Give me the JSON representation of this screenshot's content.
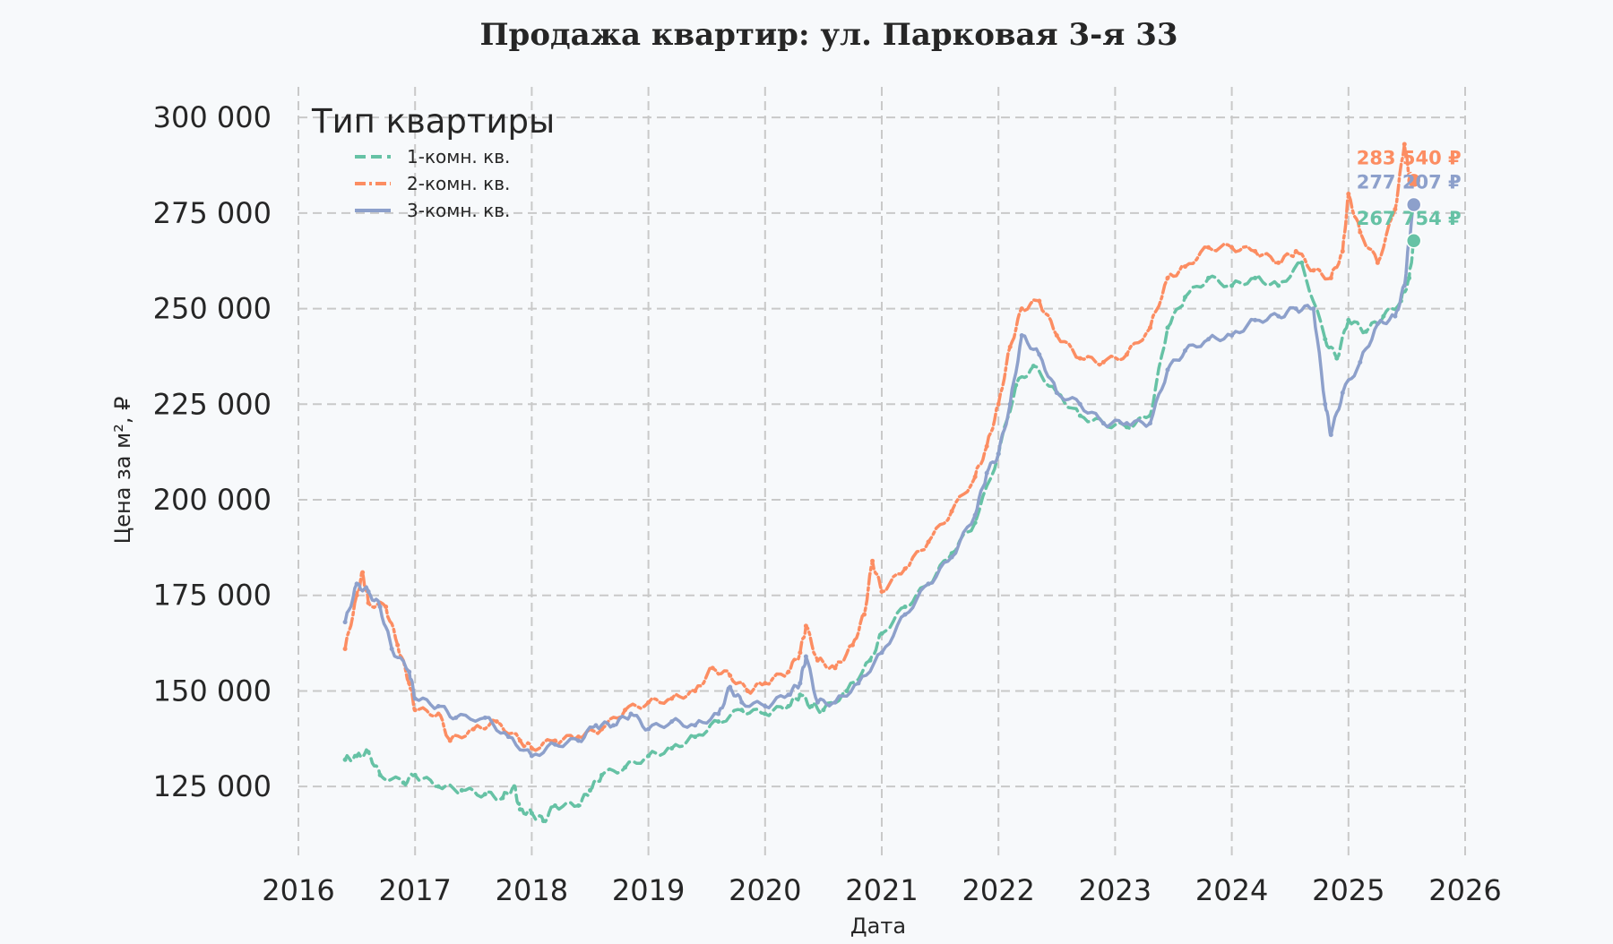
{
  "chart_data": {
    "type": "line",
    "title": "Продажа квартир: ул. Парковая 3-я 33",
    "xlabel": "Дата",
    "ylabel": "Цена за м², ₽",
    "xlim": [
      2016,
      2026
    ],
    "ylim": [
      107000,
      308000
    ],
    "xticks": [
      2016,
      2017,
      2018,
      2019,
      2020,
      2021,
      2022,
      2023,
      2024,
      2025,
      2026
    ],
    "xtick_labels": [
      "2016",
      "2017",
      "2018",
      "2019",
      "2020",
      "2021",
      "2022",
      "2023",
      "2024",
      "2025",
      "2026"
    ],
    "yticks": [
      125000,
      150000,
      175000,
      200000,
      225000,
      250000,
      275000,
      300000
    ],
    "ytick_labels": [
      "125 000",
      "150 000",
      "175 000",
      "200 000",
      "225 000",
      "250 000",
      "275 000",
      "300 000"
    ],
    "grid": true,
    "legend": {
      "title": "Тип квартиры",
      "position": "top-left"
    },
    "series": [
      {
        "name": "1-комн. кв.",
        "color": "#66c2a5",
        "style": "dashed",
        "end_label": "267 754 ₽",
        "end_value": 267754,
        "points": [
          [
            2016.4,
            132000
          ],
          [
            2016.5,
            133000
          ],
          [
            2016.6,
            134000
          ],
          [
            2016.7,
            128000
          ],
          [
            2016.9,
            126000
          ],
          [
            2017.0,
            128000
          ],
          [
            2017.2,
            125000
          ],
          [
            2017.4,
            124000
          ],
          [
            2017.6,
            123000
          ],
          [
            2017.75,
            122000
          ],
          [
            2017.85,
            125000
          ],
          [
            2017.9,
            119000
          ],
          [
            2018.0,
            118000
          ],
          [
            2018.1,
            116000
          ],
          [
            2018.2,
            120000
          ],
          [
            2018.4,
            120000
          ],
          [
            2018.5,
            124000
          ],
          [
            2018.6,
            128000
          ],
          [
            2018.8,
            130000
          ],
          [
            2019.0,
            133000
          ],
          [
            2019.2,
            135000
          ],
          [
            2019.4,
            138000
          ],
          [
            2019.6,
            142000
          ],
          [
            2019.8,
            145000
          ],
          [
            2020.0,
            144000
          ],
          [
            2020.2,
            146000
          ],
          [
            2020.3,
            149000
          ],
          [
            2020.4,
            146000
          ],
          [
            2020.5,
            145000
          ],
          [
            2020.7,
            150000
          ],
          [
            2020.9,
            158000
          ],
          [
            2021.0,
            165000
          ],
          [
            2021.2,
            172000
          ],
          [
            2021.4,
            178000
          ],
          [
            2021.6,
            186000
          ],
          [
            2021.8,
            194000
          ],
          [
            2022.0,
            212000
          ],
          [
            2022.15,
            230000
          ],
          [
            2022.3,
            235000
          ],
          [
            2022.5,
            228000
          ],
          [
            2022.7,
            222000
          ],
          [
            2022.9,
            220000
          ],
          [
            2023.1,
            219000
          ],
          [
            2023.3,
            222000
          ],
          [
            2023.45,
            245000
          ],
          [
            2023.6,
            253000
          ],
          [
            2023.8,
            258000
          ],
          [
            2024.0,
            256000
          ],
          [
            2024.2,
            258000
          ],
          [
            2024.4,
            256000
          ],
          [
            2024.6,
            262000
          ],
          [
            2024.8,
            242000
          ],
          [
            2024.9,
            237000
          ],
          [
            2025.0,
            247000
          ],
          [
            2025.15,
            244000
          ],
          [
            2025.3,
            248000
          ],
          [
            2025.45,
            252000
          ],
          [
            2025.52,
            258000
          ],
          [
            2025.56,
            267754
          ]
        ]
      },
      {
        "name": "2-комн. кв.",
        "color": "#fc8d62",
        "style": "dashdot",
        "end_label": "283 540 ₽",
        "end_value": 283540,
        "points": [
          [
            2016.4,
            161000
          ],
          [
            2016.5,
            175000
          ],
          [
            2016.55,
            181000
          ],
          [
            2016.6,
            173000
          ],
          [
            2016.75,
            172000
          ],
          [
            2016.85,
            162000
          ],
          [
            2016.95,
            152000
          ],
          [
            2017.0,
            145000
          ],
          [
            2017.2,
            144000
          ],
          [
            2017.3,
            137000
          ],
          [
            2017.5,
            140000
          ],
          [
            2017.7,
            142000
          ],
          [
            2017.9,
            137000
          ],
          [
            2018.0,
            135000
          ],
          [
            2018.2,
            137000
          ],
          [
            2018.4,
            138000
          ],
          [
            2018.6,
            140000
          ],
          [
            2018.8,
            145000
          ],
          [
            2019.0,
            147000
          ],
          [
            2019.2,
            148000
          ],
          [
            2019.4,
            150000
          ],
          [
            2019.55,
            156000
          ],
          [
            2019.7,
            154000
          ],
          [
            2019.85,
            150000
          ],
          [
            2020.0,
            152000
          ],
          [
            2020.2,
            155000
          ],
          [
            2020.3,
            160000
          ],
          [
            2020.35,
            167000
          ],
          [
            2020.45,
            158000
          ],
          [
            2020.6,
            156000
          ],
          [
            2020.75,
            162000
          ],
          [
            2020.85,
            170000
          ],
          [
            2020.92,
            184000
          ],
          [
            2021.0,
            176000
          ],
          [
            2021.2,
            182000
          ],
          [
            2021.4,
            189000
          ],
          [
            2021.6,
            197000
          ],
          [
            2021.8,
            206000
          ],
          [
            2021.9,
            214000
          ],
          [
            2022.0,
            225000
          ],
          [
            2022.1,
            240000
          ],
          [
            2022.2,
            250000
          ],
          [
            2022.35,
            252000
          ],
          [
            2022.5,
            243000
          ],
          [
            2022.7,
            237000
          ],
          [
            2022.9,
            236000
          ],
          [
            2023.1,
            238000
          ],
          [
            2023.3,
            245000
          ],
          [
            2023.45,
            258000
          ],
          [
            2023.6,
            261000
          ],
          [
            2023.8,
            266000
          ],
          [
            2024.0,
            266000
          ],
          [
            2024.2,
            265000
          ],
          [
            2024.4,
            262000
          ],
          [
            2024.55,
            265000
          ],
          [
            2024.7,
            260000
          ],
          [
            2024.85,
            258000
          ],
          [
            2024.95,
            265000
          ],
          [
            2025.0,
            280000
          ],
          [
            2025.1,
            270000
          ],
          [
            2025.25,
            262000
          ],
          [
            2025.4,
            276000
          ],
          [
            2025.48,
            293000
          ],
          [
            2025.52,
            285000
          ],
          [
            2025.56,
            283540
          ]
        ]
      },
      {
        "name": "3-комн. кв.",
        "color": "#8da0cb",
        "style": "solid",
        "end_label": "277 207 ₽",
        "end_value": 277207,
        "points": [
          [
            2016.4,
            168000
          ],
          [
            2016.5,
            178000
          ],
          [
            2016.6,
            176000
          ],
          [
            2016.7,
            172000
          ],
          [
            2016.8,
            161000
          ],
          [
            2016.95,
            155000
          ],
          [
            2017.0,
            148000
          ],
          [
            2017.2,
            146000
          ],
          [
            2017.35,
            143000
          ],
          [
            2017.6,
            143000
          ],
          [
            2017.8,
            138000
          ],
          [
            2018.0,
            133000
          ],
          [
            2018.2,
            136000
          ],
          [
            2018.4,
            137000
          ],
          [
            2018.55,
            141000
          ],
          [
            2018.7,
            141000
          ],
          [
            2018.85,
            144000
          ],
          [
            2019.0,
            140000
          ],
          [
            2019.2,
            142000
          ],
          [
            2019.4,
            141000
          ],
          [
            2019.6,
            144000
          ],
          [
            2019.7,
            151000
          ],
          [
            2019.8,
            147000
          ],
          [
            2020.0,
            146000
          ],
          [
            2020.2,
            149000
          ],
          [
            2020.3,
            152000
          ],
          [
            2020.35,
            159000
          ],
          [
            2020.45,
            147000
          ],
          [
            2020.6,
            147000
          ],
          [
            2020.8,
            152000
          ],
          [
            2021.0,
            160000
          ],
          [
            2021.2,
            170000
          ],
          [
            2021.4,
            178000
          ],
          [
            2021.6,
            185000
          ],
          [
            2021.8,
            196000
          ],
          [
            2021.9,
            207000
          ],
          [
            2022.0,
            212000
          ],
          [
            2022.1,
            225000
          ],
          [
            2022.2,
            243000
          ],
          [
            2022.35,
            238000
          ],
          [
            2022.5,
            228000
          ],
          [
            2022.7,
            225000
          ],
          [
            2022.9,
            220000
          ],
          [
            2023.1,
            220000
          ],
          [
            2023.3,
            220000
          ],
          [
            2023.45,
            234000
          ],
          [
            2023.6,
            239000
          ],
          [
            2023.8,
            242000
          ],
          [
            2024.0,
            243000
          ],
          [
            2024.2,
            247000
          ],
          [
            2024.4,
            248000
          ],
          [
            2024.55,
            250000
          ],
          [
            2024.7,
            250000
          ],
          [
            2024.8,
            225000
          ],
          [
            2024.85,
            217000
          ],
          [
            2024.95,
            228000
          ],
          [
            2025.1,
            236000
          ],
          [
            2025.25,
            246000
          ],
          [
            2025.4,
            248000
          ],
          [
            2025.48,
            256000
          ],
          [
            2025.52,
            268000
          ],
          [
            2025.56,
            277207
          ]
        ]
      }
    ]
  }
}
